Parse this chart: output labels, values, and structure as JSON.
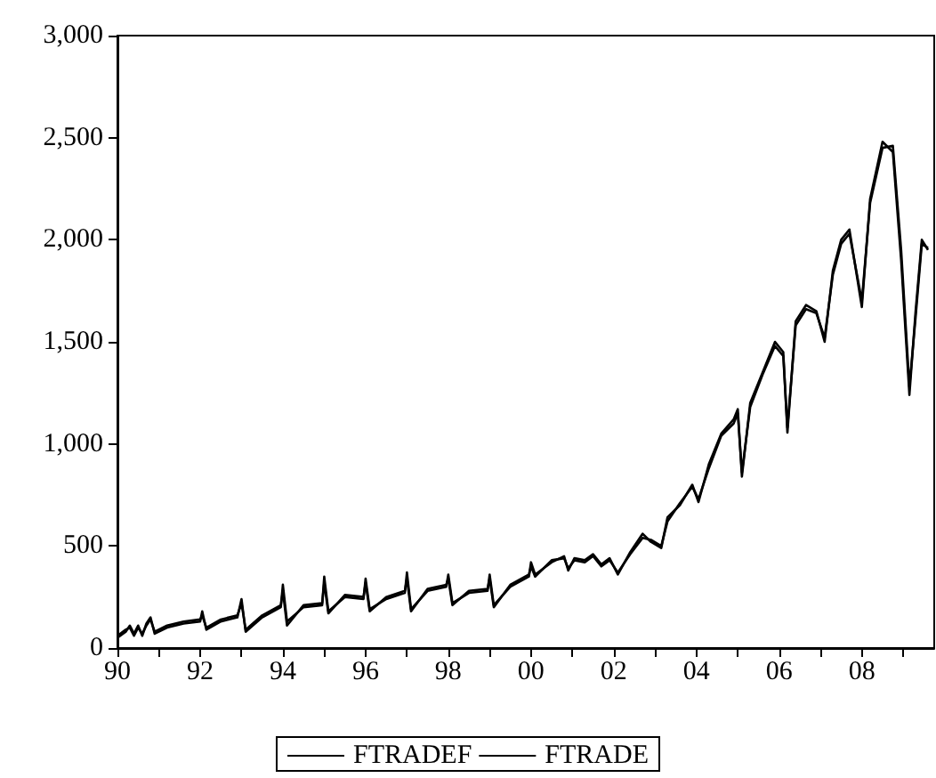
{
  "chart_data": {
    "type": "line",
    "xlim": [
      1990,
      2009.75
    ],
    "ylim": [
      0,
      3000
    ],
    "xticks": [
      {
        "value": 1990,
        "label": "90"
      },
      {
        "value": 1991,
        "label": null
      },
      {
        "value": 1992,
        "label": "92"
      },
      {
        "value": 1993,
        "label": null
      },
      {
        "value": 1994,
        "label": "94"
      },
      {
        "value": 1995,
        "label": null
      },
      {
        "value": 1996,
        "label": "96"
      },
      {
        "value": 1997,
        "label": null
      },
      {
        "value": 1998,
        "label": "98"
      },
      {
        "value": 1999,
        "label": null
      },
      {
        "value": 2000,
        "label": "00"
      },
      {
        "value": 2001,
        "label": null
      },
      {
        "value": 2002,
        "label": "02"
      },
      {
        "value": 2003,
        "label": null
      },
      {
        "value": 2004,
        "label": "04"
      },
      {
        "value": 2005,
        "label": null
      },
      {
        "value": 2006,
        "label": "06"
      },
      {
        "value": 2007,
        "label": null
      },
      {
        "value": 2008,
        "label": "08"
      },
      {
        "value": 2009,
        "label": null
      }
    ],
    "yticks": [
      0,
      500,
      {
        "value": 1000,
        "label": "1,000"
      },
      {
        "value": 1500,
        "label": "1,500"
      },
      {
        "value": 2000,
        "label": "2,000"
      },
      {
        "value": 2500,
        "label": "2,500"
      },
      {
        "value": 3000,
        "label": "3,000"
      }
    ],
    "grid": false,
    "legend": "bottom",
    "marker": "none",
    "line_style": "solid",
    "series": [
      {
        "name": "FTRADEF",
        "color": "#000000",
        "x": [
          1990.0,
          1990.2,
          1990.3,
          1990.4,
          1990.5,
          1990.6,
          1990.7,
          1990.8,
          1990.9,
          1991.2,
          1991.6,
          1992.0,
          1992.05,
          1992.15,
          1992.5,
          1992.9,
          1993.0,
          1993.1,
          1993.5,
          1993.95,
          1994.0,
          1994.1,
          1994.5,
          1994.95,
          1995.0,
          1995.1,
          1995.5,
          1995.95,
          1996.0,
          1996.1,
          1996.5,
          1996.95,
          1997.0,
          1997.1,
          1997.5,
          1997.95,
          1998.0,
          1998.1,
          1998.5,
          1998.95,
          1999.0,
          1999.1,
          1999.5,
          1999.95,
          2000.0,
          2000.1,
          2000.5,
          2000.8,
          2000.9,
          2001.05,
          2001.3,
          2001.5,
          2001.7,
          2001.9,
          2002.1,
          2002.4,
          2002.7,
          2002.9,
          2003.15,
          2003.3,
          2003.6,
          2003.9,
          2004.05,
          2004.3,
          2004.6,
          2004.9,
          2005.0,
          2005.1,
          2005.3,
          2005.6,
          2005.9,
          2006.1,
          2006.2,
          2006.4,
          2006.65,
          2006.9,
          2007.1,
          2007.3,
          2007.5,
          2007.7,
          2008.0,
          2008.2,
          2008.5,
          2008.75,
          2008.95,
          2009.15,
          2009.3,
          2009.45,
          2009.6
        ],
        "values": [
          50,
          80,
          110,
          70,
          110,
          60,
          120,
          150,
          70,
          100,
          120,
          130,
          180,
          90,
          130,
          150,
          240,
          80,
          150,
          200,
          310,
          130,
          200,
          210,
          350,
          180,
          250,
          240,
          340,
          190,
          240,
          270,
          370,
          190,
          280,
          300,
          360,
          220,
          270,
          280,
          360,
          210,
          300,
          350,
          420,
          360,
          420,
          450,
          380,
          440,
          430,
          460,
          410,
          440,
          360,
          470,
          560,
          520,
          490,
          640,
          700,
          800,
          715,
          900,
          1050,
          1120,
          1170,
          840,
          1200,
          1350,
          1500,
          1450,
          1055,
          1600,
          1680,
          1650,
          1500,
          1850,
          2000,
          2050,
          1670,
          2200,
          2480,
          2430,
          1900,
          1240,
          1650,
          2000,
          1950
        ]
      },
      {
        "name": "FTRADE",
        "color": "#000000",
        "x": [
          1990.0,
          1990.2,
          1990.3,
          1990.4,
          1990.5,
          1990.6,
          1990.7,
          1990.8,
          1990.9,
          1991.2,
          1991.6,
          1992.0,
          1992.05,
          1992.15,
          1992.5,
          1992.9,
          1993.0,
          1993.1,
          1993.5,
          1993.95,
          1994.0,
          1994.1,
          1994.5,
          1994.95,
          1995.0,
          1995.1,
          1995.5,
          1995.95,
          1996.0,
          1996.1,
          1996.5,
          1996.95,
          1997.0,
          1997.1,
          1997.5,
          1997.95,
          1998.0,
          1998.1,
          1998.5,
          1998.95,
          1999.0,
          1999.1,
          1999.5,
          1999.95,
          2000.0,
          2000.1,
          2000.5,
          2000.8,
          2000.9,
          2001.05,
          2001.3,
          2001.5,
          2001.7,
          2001.9,
          2002.1,
          2002.4,
          2002.7,
          2002.9,
          2003.15,
          2003.3,
          2003.6,
          2003.9,
          2004.05,
          2004.3,
          2004.6,
          2004.9,
          2005.0,
          2005.1,
          2005.3,
          2005.6,
          2005.9,
          2006.1,
          2006.2,
          2006.4,
          2006.65,
          2006.9,
          2007.1,
          2007.3,
          2007.5,
          2007.7,
          2008.0,
          2008.2,
          2008.5,
          2008.75,
          2008.95,
          2009.15,
          2009.3,
          2009.45,
          2009.6
        ],
        "values": [
          60,
          90,
          100,
          60,
          100,
          70,
          110,
          140,
          80,
          110,
          130,
          140,
          160,
          100,
          140,
          160,
          220,
          90,
          160,
          210,
          280,
          110,
          210,
          220,
          320,
          170,
          260,
          250,
          320,
          180,
          250,
          280,
          340,
          180,
          290,
          310,
          340,
          210,
          280,
          290,
          340,
          200,
          310,
          360,
          400,
          350,
          430,
          440,
          390,
          430,
          420,
          450,
          400,
          430,
          370,
          460,
          540,
          530,
          500,
          620,
          710,
          790,
          730,
          880,
          1040,
          1100,
          1150,
          860,
          1180,
          1340,
          1480,
          1430,
          1080,
          1580,
          1660,
          1640,
          1520,
          1830,
          1980,
          2030,
          1700,
          2180,
          2450,
          2460,
          1950,
          1280,
          1620,
          1980,
          1960
        ]
      }
    ]
  }
}
